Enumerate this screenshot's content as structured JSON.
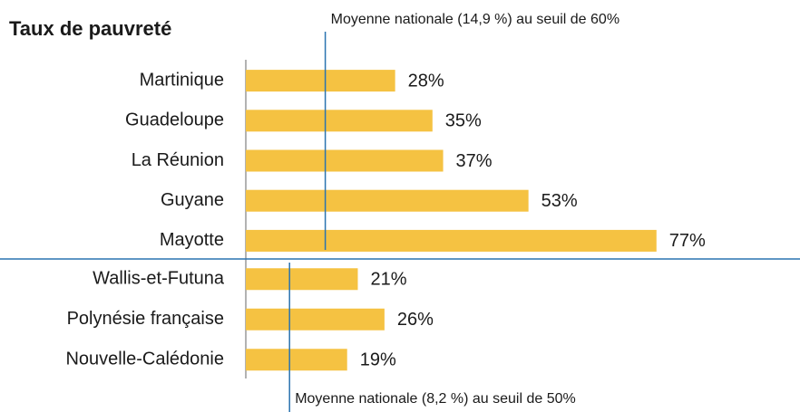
{
  "chart_data": {
    "type": "bar",
    "title": "Taux de pauvreté",
    "color": "#f5c242",
    "line_color": "#2a73b0",
    "groups": [
      {
        "categories": [
          "Martinique",
          "Guadeloupe",
          "La Réunion",
          "Guyane",
          "Mayotte"
        ],
        "values": [
          28,
          35,
          37,
          53,
          77
        ],
        "value_labels": [
          "28%",
          "35%",
          "37%",
          "53%",
          "77%"
        ],
        "reference_line": {
          "value": 14.9,
          "label": "Moyenne nationale (14,9 %) au seuil de 60%"
        }
      },
      {
        "categories": [
          "Wallis-et-Futuna",
          "Polynésie française",
          "Nouvelle-Calédonie"
        ],
        "values": [
          21,
          26,
          19
        ],
        "value_labels": [
          "21%",
          "26%",
          "19%"
        ],
        "reference_line": {
          "value": 8.2,
          "label": "Moyenne nationale (8,2 %) au seuil de 50%"
        }
      }
    ]
  }
}
